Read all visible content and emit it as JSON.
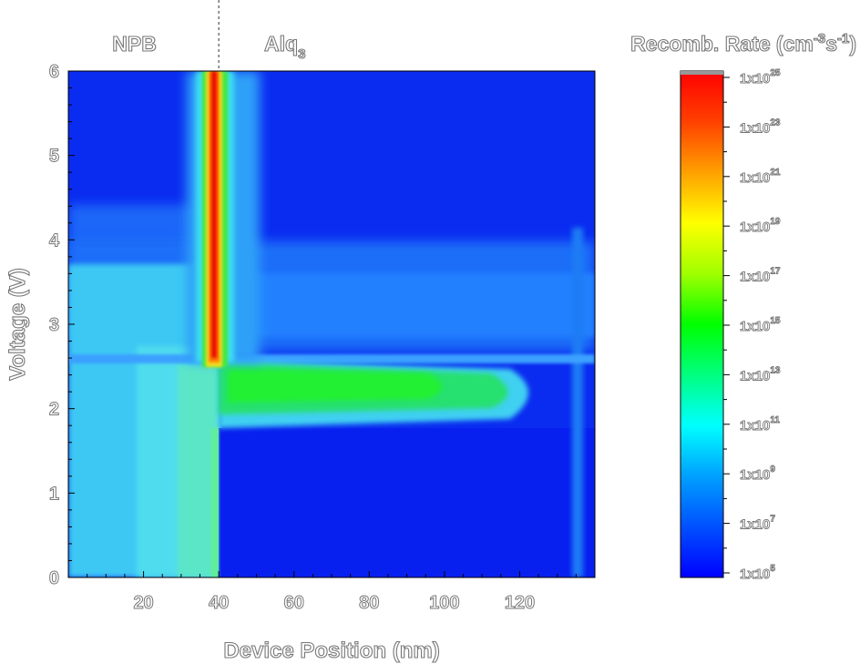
{
  "chart_data": {
    "type": "heatmap",
    "xlabel": "Device Position (nm)",
    "ylabel": "Voltage (V)",
    "xlim": [
      0,
      140
    ],
    "ylim": [
      0,
      6
    ],
    "x_ticks": [
      20,
      40,
      60,
      80,
      100,
      120
    ],
    "y_ticks": [
      0,
      1,
      2,
      3,
      4,
      5,
      6
    ],
    "layers": [
      {
        "name": "NPB",
        "position": 20
      },
      {
        "name": "Alq",
        "subscript": "3",
        "position": 60
      }
    ],
    "interface_position": 40,
    "colorbar": {
      "title": "Recomb. Rate (cm",
      "title_exp1": "-3",
      "title_mid": "s",
      "title_exp2": "-1",
      "title_end": ")",
      "log_min": 5,
      "log_max": 25,
      "tick_base": "1x10",
      "tick_exponents": [
        "25",
        "23",
        "21",
        "19",
        "17",
        "15",
        "13",
        "11",
        "9",
        "7",
        "5"
      ],
      "colormap": [
        "#0000ff",
        "#0050ff",
        "#00a0ff",
        "#00ffff",
        "#00ff80",
        "#00ff00",
        "#a0ff00",
        "#ffff00",
        "#ffa000",
        "#ff4000",
        "#ff0000"
      ]
    }
  }
}
